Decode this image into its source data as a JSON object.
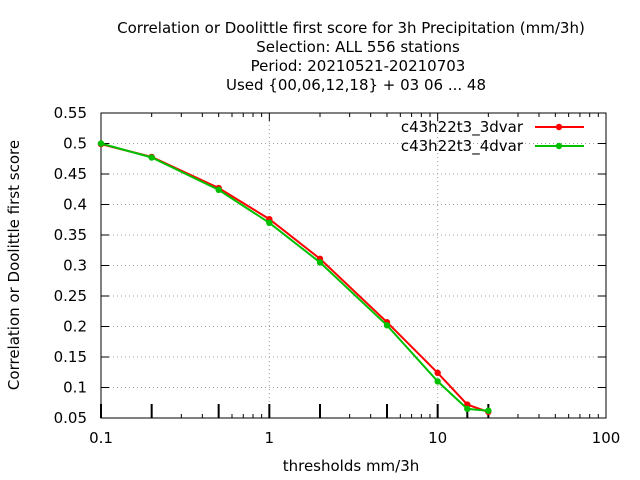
{
  "chart_data": {
    "type": "line",
    "title_lines": [
      "Correlation or Doolittle first score  for 3h Precipitation (mm/3h)",
      "Selection: ALL    556 stations",
      "Period: 20210521-20210703",
      "Used {00,06,12,18} + 03 06 ... 48"
    ],
    "xlabel": "thresholds mm/3h",
    "ylabel": "Correlation or Doolittle first score",
    "xscale": "log",
    "xlim": [
      0.1,
      100
    ],
    "ylim": [
      0.05,
      0.55
    ],
    "x_ticks": [
      0.1,
      1,
      10,
      100
    ],
    "x_tick_labels": [
      "0.1",
      "1",
      "10",
      "100"
    ],
    "y_ticks": [
      0.05,
      0.1,
      0.15,
      0.2,
      0.25,
      0.3,
      0.35,
      0.4,
      0.45,
      0.5,
      0.55
    ],
    "y_tick_labels": [
      "0.05",
      "0.1",
      "0.15",
      "0.2",
      "0.25",
      "0.3",
      "0.35",
      "0.4",
      "0.45",
      "0.5",
      "0.55"
    ],
    "grid": true,
    "legend_position": "top-right",
    "x": [
      0.1,
      0.2,
      0.5,
      1,
      2,
      5,
      10,
      15,
      20
    ],
    "series": [
      {
        "name": "c43h22t3_3dvar",
        "color": "#ff0000",
        "values": [
          0.499,
          0.478,
          0.427,
          0.376,
          0.311,
          0.207,
          0.124,
          0.072,
          0.06
        ]
      },
      {
        "name": "c43h22t3_4dvar",
        "color": "#00c000",
        "values": [
          0.5,
          0.477,
          0.424,
          0.37,
          0.305,
          0.202,
          0.11,
          0.065,
          0.062
        ]
      }
    ],
    "station_ticks_x": [
      0.1,
      0.2,
      0.5,
      1,
      2,
      5,
      10,
      15,
      20
    ]
  }
}
